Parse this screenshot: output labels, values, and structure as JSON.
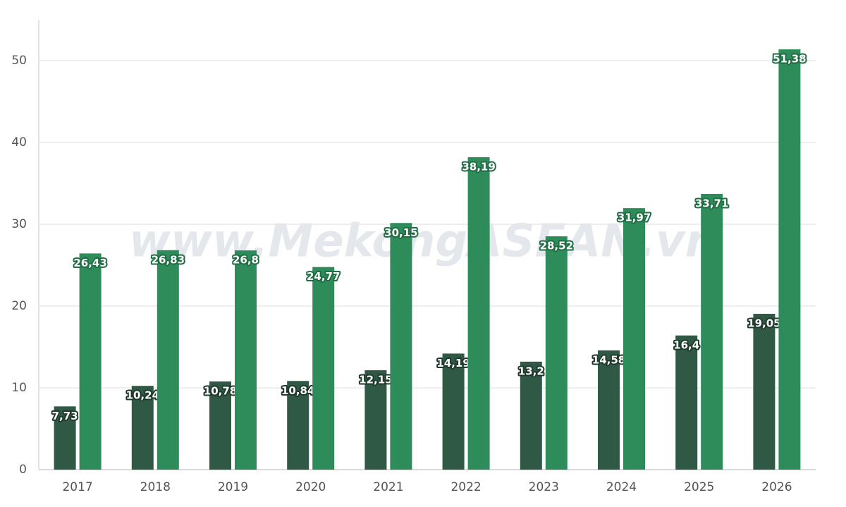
{
  "chart_data": {
    "type": "bar",
    "watermark": "www.MekongASEAN.vn",
    "categories": [
      "2017",
      "2018",
      "2019",
      "2020",
      "2021",
      "2022",
      "2023",
      "2024",
      "2025",
      "2026"
    ],
    "series": [
      {
        "color": "#2f5945",
        "values": [
          7.73,
          10.24,
          10.78,
          10.84,
          12.15,
          14.19,
          13.2,
          14.58,
          16.4,
          19.05
        ],
        "value_labels": [
          "7,73",
          "10,24",
          "10,78",
          "10,84",
          "12,15",
          "14,19",
          "13,2",
          "14,58",
          "16,4",
          "19,05"
        ]
      },
      {
        "color": "#2e8b5a",
        "values": [
          26.43,
          26.83,
          26.8,
          24.77,
          30.15,
          38.19,
          28.52,
          31.97,
          33.71,
          51.38
        ],
        "value_labels": [
          "26,43",
          "26,83",
          "26,8",
          "24,77",
          "30,15",
          "38,19",
          "28,52",
          "31,97",
          "33,71",
          "51,38"
        ]
      }
    ],
    "ylim": [
      0,
      55
    ],
    "yticks": [
      0,
      10,
      20,
      30,
      40,
      50
    ],
    "grid": true
  }
}
